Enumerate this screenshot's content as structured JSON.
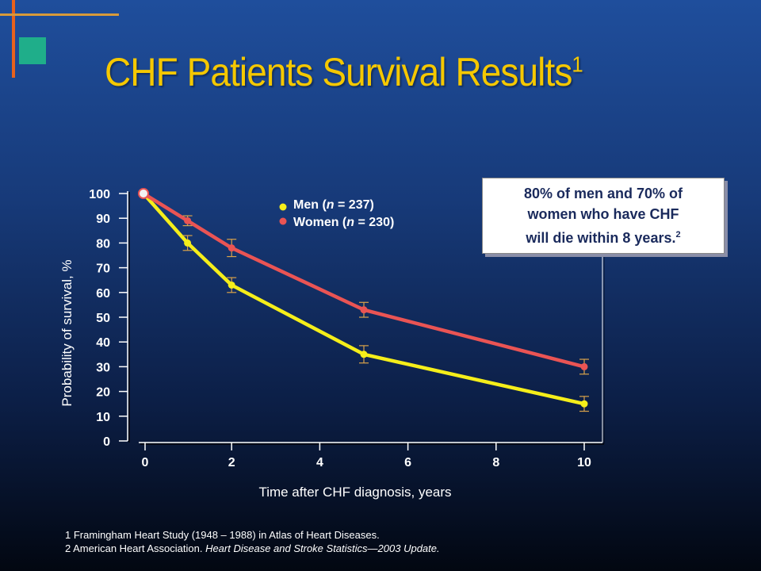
{
  "title": "CHF Patients Survival Results",
  "title_ref": "1",
  "callout": {
    "line1": "80% of men and 70% of",
    "line2": "women who have CHF",
    "line3": "will die within 8 years.",
    "ref": "2"
  },
  "references": [
    {
      "number": "1",
      "text": "Framingham Heart Study (1948 – 1988) in Atlas of Heart Diseases.",
      "italic": ""
    },
    {
      "number": "2",
      "text": "American Heart Association.",
      "italic": "Heart Disease and Stroke Statistics—2003 Update."
    }
  ],
  "colors": {
    "title": "#f5c800",
    "men": "#f5ee1a",
    "women": "#ea5454",
    "axis": "#ffffff",
    "error_bar": "#d9a24a"
  },
  "chart_data": {
    "type": "line",
    "title": "",
    "xlabel": "Time after CHF diagnosis, years",
    "ylabel": "Probability of survival, %",
    "xlim": [
      0,
      10
    ],
    "ylim": [
      0,
      100
    ],
    "x_ticks": [
      "0",
      "2",
      "4",
      "6",
      "8",
      "10"
    ],
    "y_ticks": [
      "0",
      "10",
      "20",
      "30",
      "40",
      "50",
      "60",
      "70",
      "80",
      "90",
      "100"
    ],
    "legend_position": "top-center",
    "series": [
      {
        "name": "Men",
        "n_label": "(n = 237)",
        "color": "#f5ee1a",
        "x": [
          0,
          1,
          2,
          5,
          10
        ],
        "y": [
          100,
          80,
          63,
          35,
          15
        ],
        "error": [
          0,
          3,
          3,
          3.5,
          3
        ]
      },
      {
        "name": "Women",
        "n_label": "(n = 230)",
        "color": "#ea5454",
        "x": [
          0,
          1,
          2,
          5,
          10
        ],
        "y": [
          100,
          89,
          78,
          53,
          30
        ],
        "error": [
          0,
          2,
          3.5,
          3,
          3
        ]
      }
    ]
  }
}
